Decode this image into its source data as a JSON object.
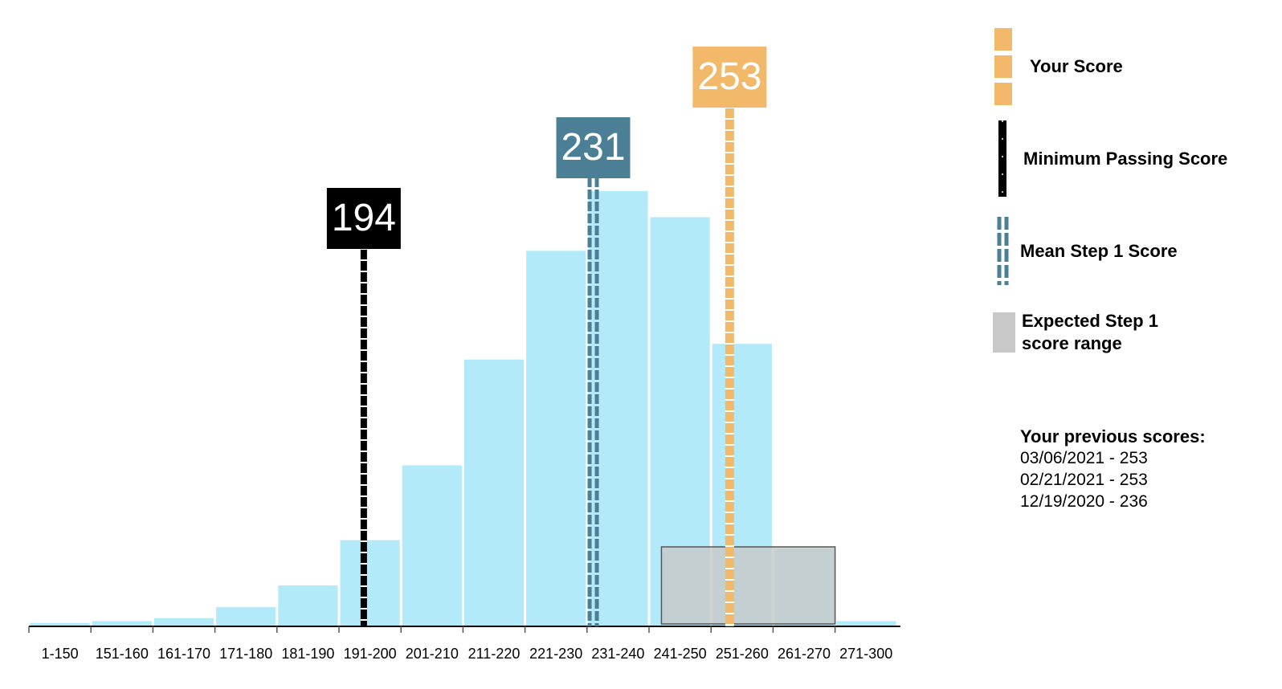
{
  "chart_data": {
    "type": "bar",
    "categories": [
      "1-150",
      "151-160",
      "161-170",
      "171-180",
      "181-190",
      "191-200",
      "201-210",
      "211-220",
      "221-230",
      "231-240",
      "241-250",
      "251-260",
      "261-270",
      "271-300"
    ],
    "values": [
      0.8,
      1.2,
      1.9,
      4.4,
      9.4,
      19.8,
      37.0,
      61.3,
      86.3,
      100,
      94.0,
      64.9,
      17.8,
      1.2
    ],
    "value_unit": "relative frequency (% of tallest bar)",
    "ylim": [
      0,
      100
    ],
    "bar_color": "#b2eaf9",
    "markers": [
      {
        "id": "min_passing",
        "value": 194,
        "label": "194",
        "color": "#000000",
        "style": "dashed-white-center"
      },
      {
        "id": "mean",
        "value": 231,
        "label": "231",
        "color": "#4b7f96",
        "style": "double-dashed"
      },
      {
        "id": "your_score",
        "value": 253,
        "label": "253",
        "color": "#f2b96b",
        "style": "dashed-white-center"
      }
    ],
    "expected_range": {
      "low": 242,
      "high": 270,
      "color": "#c8c8c8"
    }
  },
  "legend": {
    "your_score": {
      "label": "Your Score",
      "color": "#f2b96b"
    },
    "min_passing": {
      "label": "Minimum Passing Score",
      "color": "#000000"
    },
    "mean": {
      "label": "Mean Step 1 Score",
      "color": "#4b7f96"
    },
    "expected_range": {
      "label_line1": "Expected Step 1",
      "label_line2": "score range",
      "color": "#c8c8c8"
    }
  },
  "previous_scores": {
    "title": "Your previous scores:",
    "entries": [
      "03/06/2021 - 253",
      "02/21/2021 - 253",
      "12/19/2020 - 236"
    ]
  }
}
